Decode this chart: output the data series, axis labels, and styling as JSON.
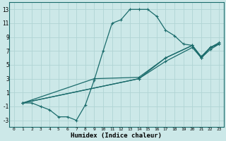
{
  "xlabel": "Humidex (Indice chaleur)",
  "ylabel": "",
  "xlim": [
    -0.5,
    23.5
  ],
  "ylim": [
    -4.0,
    14.0
  ],
  "xticks": [
    0,
    1,
    2,
    3,
    4,
    5,
    6,
    7,
    8,
    9,
    10,
    11,
    12,
    13,
    14,
    15,
    16,
    17,
    18,
    19,
    20,
    21,
    22,
    23
  ],
  "yticks": [
    -3,
    -1,
    1,
    3,
    5,
    7,
    9,
    11,
    13
  ],
  "bg_color": "#cce8e8",
  "grid_color": "#b0d4d4",
  "line_color": "#1a6b6b",
  "curves": [
    {
      "x": [
        1,
        2,
        3,
        4,
        5,
        6,
        7,
        8,
        9,
        10,
        11,
        12,
        13,
        14,
        15,
        16,
        17,
        18,
        19,
        20,
        21,
        22,
        23
      ],
      "y": [
        -0.5,
        -0.5,
        -1.0,
        -1.5,
        -2.5,
        -2.5,
        -3.0,
        -0.8,
        2.8,
        7.0,
        11.0,
        11.5,
        13.0,
        13.0,
        13.0,
        12.0,
        10.0,
        9.2,
        8.0,
        7.8,
        6.0,
        7.5,
        8.0
      ]
    },
    {
      "x": [
        1,
        14,
        17,
        20,
        21,
        22,
        23
      ],
      "y": [
        -0.5,
        3.0,
        5.5,
        7.5,
        6.0,
        7.2,
        8.0
      ]
    },
    {
      "x": [
        1,
        14,
        17,
        20,
        21,
        22,
        23
      ],
      "y": [
        -0.5,
        3.0,
        6.0,
        7.8,
        6.2,
        7.5,
        8.2
      ]
    },
    {
      "x": [
        1,
        9,
        14,
        17,
        20,
        21,
        22,
        23
      ],
      "y": [
        -0.5,
        3.0,
        3.2,
        6.0,
        7.8,
        6.0,
        7.5,
        8.0
      ]
    }
  ]
}
